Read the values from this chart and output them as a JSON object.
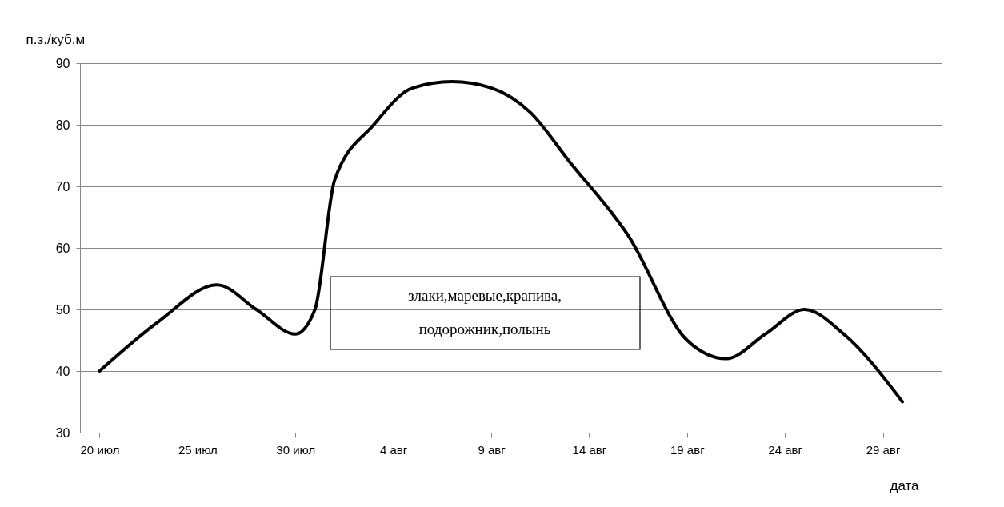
{
  "chart_data": {
    "type": "line",
    "ylabel": "п.з./куб.м",
    "xlabel": "дата",
    "x": [
      "--07-20",
      "--07-23",
      "--07-26",
      "--07-28",
      "--07-30",
      "--07-31",
      "--08-01",
      "--08-03",
      "--08-05",
      "--08-07",
      "--08-09",
      "--08-11",
      "--08-13",
      "--08-16",
      "--08-19",
      "--08-21",
      "--08-23",
      "--08-25",
      "--08-27",
      "--08-30"
    ],
    "series": [
      {
        "color": "#000000",
        "values": [
          40,
          48,
          54,
          50,
          46,
          50,
          71,
          80,
          86,
          87,
          86,
          82,
          74,
          62,
          45,
          42,
          46,
          50,
          46,
          35
        ]
      }
    ],
    "xlim": [
      "--07-19",
      "--09-01"
    ],
    "xticks": [
      {
        "value": "--07-20",
        "label": "20 июл"
      },
      {
        "value": "--07-25",
        "label": "25 июл"
      },
      {
        "value": "--07-30",
        "label": "30 июл"
      },
      {
        "value": "--08-04",
        "label": "4 авг"
      },
      {
        "value": "--08-09",
        "label": "9 авг"
      },
      {
        "value": "--08-14",
        "label": "14 авг"
      },
      {
        "value": "--08-19",
        "label": "19 авг"
      },
      {
        "value": "--08-24",
        "label": "24 авг"
      },
      {
        "value": "--08-29",
        "label": "29 авг"
      }
    ],
    "ylim": [
      30,
      90
    ],
    "yticks": [
      30,
      40,
      50,
      60,
      70,
      80,
      90
    ],
    "grid": "y",
    "marker": "none",
    "line_style": "solid",
    "annotations": [
      "злаки,маревые,крапива,\nподорожник,полынь"
    ]
  }
}
